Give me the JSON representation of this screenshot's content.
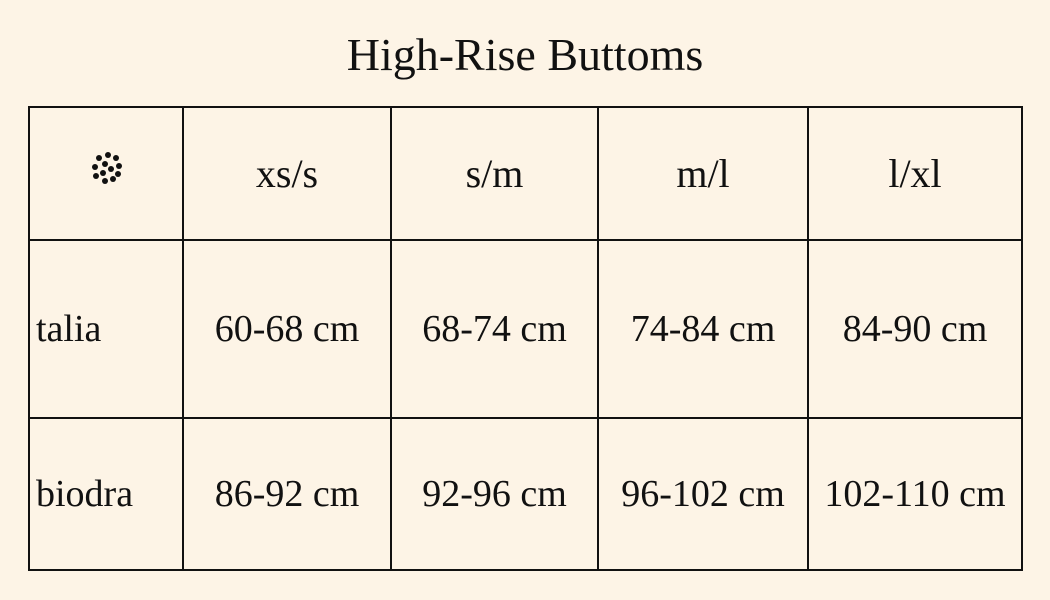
{
  "title": "High-Rise Buttoms",
  "header": {
    "icon": "dotted-circle-icon",
    "sizes": [
      "xs/s",
      "s/m",
      "m/l",
      "l/xl"
    ]
  },
  "rows": [
    {
      "label": "talia",
      "values": [
        "60-68 cm",
        "68-74 cm",
        "74-84 cm",
        "84-90 cm"
      ]
    },
    {
      "label": "biodra",
      "values": [
        "86-92 cm",
        "92-96 cm",
        "96-102 cm",
        "102-110 cm"
      ]
    }
  ]
}
